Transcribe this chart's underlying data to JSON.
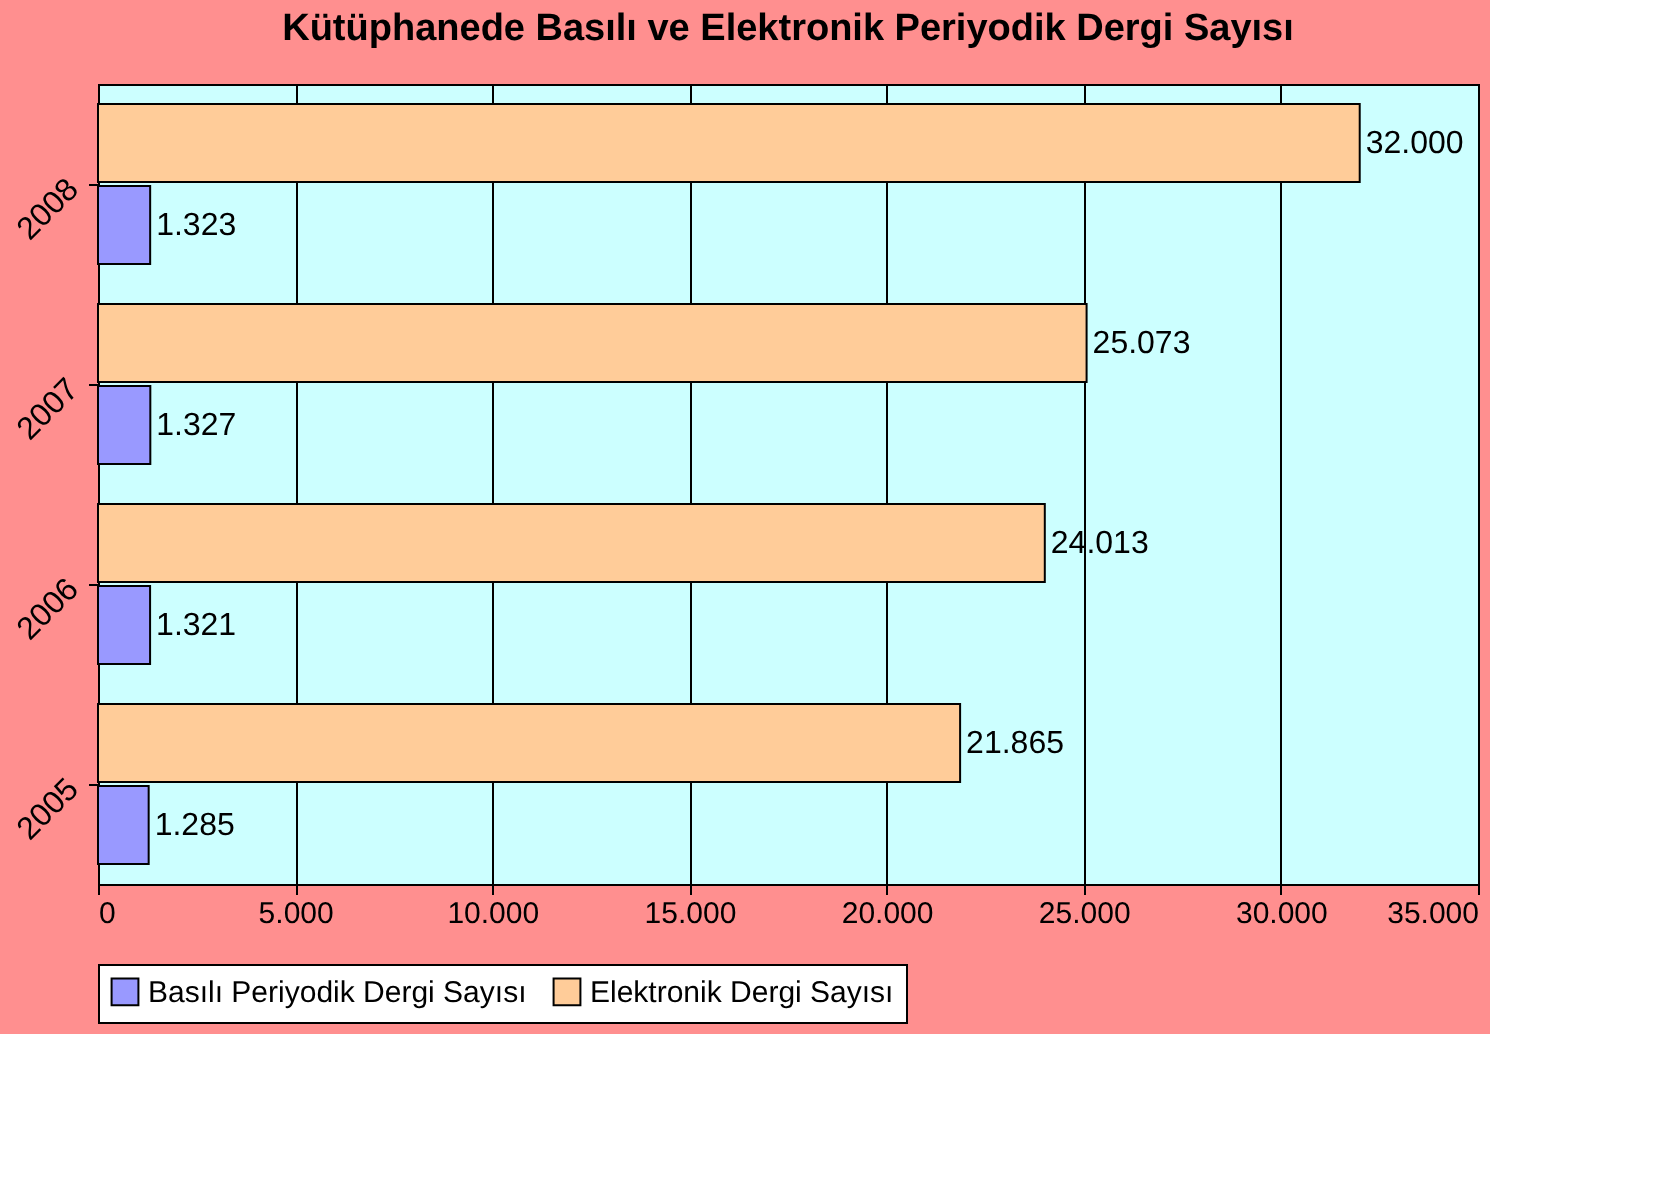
{
  "chart_data": {
    "type": "bar",
    "orientation": "horizontal",
    "title": "Kütüphanede  Basılı ve Elektronik Periyodik Dergi Sayısı",
    "categories": [
      "2008",
      "2007",
      "2006",
      "2005"
    ],
    "series": [
      {
        "name": "Basılı Periyodik Dergi Sayısı",
        "color": "#9999ff",
        "values": [
          1323,
          1327,
          1321,
          1285
        ],
        "value_labels": [
          "1.323",
          "1.327",
          "1.321",
          "1.285"
        ]
      },
      {
        "name": "Elektronik Dergi Sayısı",
        "color": "#ffcc99",
        "values": [
          32000,
          25073,
          24013,
          21865
        ],
        "value_labels": [
          "32.000",
          "25.073",
          "24.013",
          "21.865"
        ]
      }
    ],
    "xlim": [
      0,
      35000
    ],
    "xticks": [
      0,
      {
        "value": 5000,
        "label": "5.000"
      },
      {
        "value": 10000,
        "label": "10.000"
      },
      {
        "value": 15000,
        "label": "15.000"
      },
      {
        "value": 20000,
        "label": "20.000"
      },
      {
        "value": 25000,
        "label": "25.000"
      },
      {
        "value": 30000,
        "label": "30.000"
      },
      {
        "value": 35000,
        "label": "35.000"
      }
    ],
    "grid": "x",
    "legend": "bottom"
  }
}
